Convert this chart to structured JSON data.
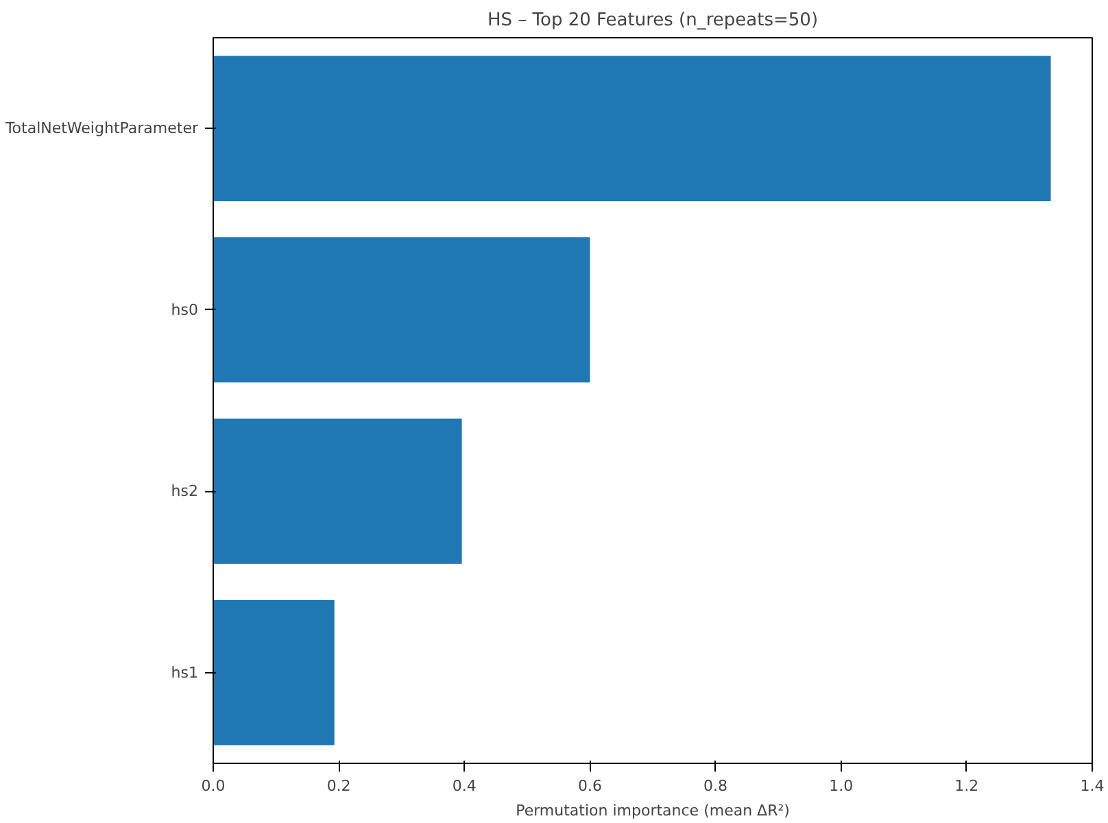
{
  "chart_data": {
    "type": "bar",
    "orientation": "horizontal",
    "title": "HS – Top 20 Features (n_repeats=50)",
    "xlabel": "Permutation importance (mean ΔR²)",
    "categories": [
      "TotalNetWeightParameter",
      "hs0",
      "hs2",
      "hs1"
    ],
    "values": [
      1.334,
      0.6,
      0.396,
      0.193
    ],
    "color": "#1f77b4",
    "xlim": [
      0,
      1.4
    ],
    "xticks": [
      {
        "value": 0,
        "label": "0.0"
      },
      0.2,
      0.4,
      0.6,
      0.8,
      {
        "value": 1,
        "label": "1.0"
      },
      1.2,
      1.4
    ],
    "grid": false
  }
}
